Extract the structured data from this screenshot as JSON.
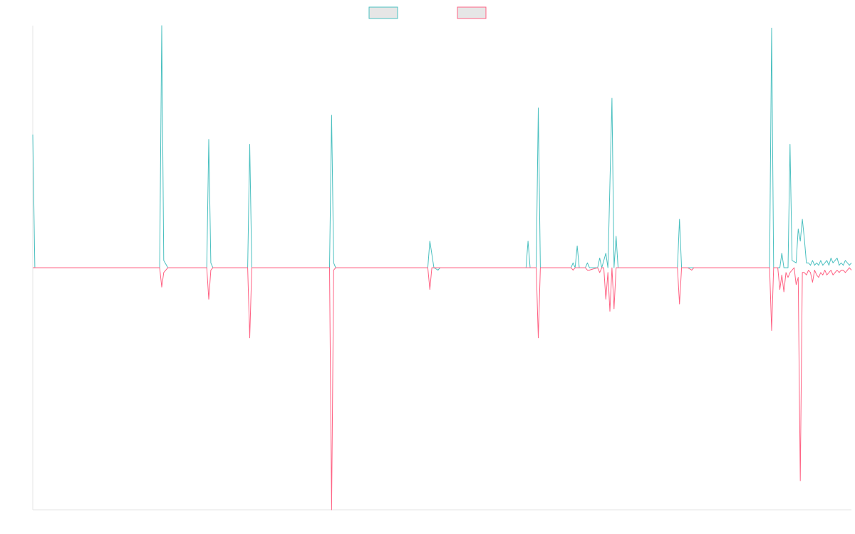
{
  "chart_data": {
    "type": "line",
    "title": "",
    "xlabel": "",
    "ylabel": "",
    "x_range": [
      0,
      400
    ],
    "ylim": [
      -100,
      100
    ],
    "grid": false,
    "legend_position": "top-center",
    "series": [
      {
        "name": "",
        "color": "#4bc0c0",
        "fill": "#e6e6e6",
        "points": [
          [
            0,
            55
          ],
          [
            1,
            0
          ],
          [
            62,
            0
          ],
          [
            63,
            100
          ],
          [
            64,
            3
          ],
          [
            66,
            0
          ],
          [
            85,
            0
          ],
          [
            86,
            53
          ],
          [
            87,
            2
          ],
          [
            88,
            0
          ],
          [
            105,
            0
          ],
          [
            106,
            51
          ],
          [
            107,
            0
          ],
          [
            145,
            0
          ],
          [
            146,
            63
          ],
          [
            147,
            2
          ],
          [
            148,
            0
          ],
          [
            193,
            0
          ],
          [
            194,
            11
          ],
          [
            196,
            0
          ],
          [
            198,
            -1
          ],
          [
            199,
            0
          ],
          [
            241,
            0
          ],
          [
            242,
            11
          ],
          [
            243,
            0
          ],
          [
            246,
            0
          ],
          [
            247,
            66
          ],
          [
            248,
            0
          ],
          [
            252,
            0
          ],
          [
            263,
            0
          ],
          [
            264,
            2
          ],
          [
            265,
            0
          ],
          [
            266,
            9
          ],
          [
            267,
            0
          ],
          [
            270,
            0
          ],
          [
            271,
            2
          ],
          [
            272,
            0
          ],
          [
            276,
            0
          ],
          [
            277,
            4
          ],
          [
            278,
            0
          ],
          [
            280,
            6
          ],
          [
            281,
            0
          ],
          [
            283,
            70
          ],
          [
            284,
            0
          ],
          [
            285,
            13
          ],
          [
            286,
            0
          ],
          [
            290,
            0
          ],
          [
            315,
            0
          ],
          [
            316,
            20
          ],
          [
            317,
            0
          ],
          [
            320,
            0
          ],
          [
            322,
            0
          ],
          [
            330,
            0
          ],
          [
            360,
            0
          ],
          [
            361,
            99
          ],
          [
            362,
            0
          ],
          [
            365,
            0
          ],
          [
            366,
            6
          ],
          [
            367,
            0
          ],
          [
            369,
            0
          ],
          [
            370,
            51
          ],
          [
            371,
            3
          ],
          [
            373,
            2
          ],
          [
            374,
            16
          ],
          [
            375,
            11
          ],
          [
            376,
            20
          ],
          [
            377,
            12
          ],
          [
            378,
            2
          ],
          [
            379,
            2
          ],
          [
            380,
            1
          ],
          [
            381,
            3
          ],
          [
            382,
            1
          ],
          [
            383,
            2
          ],
          [
            384,
            1
          ],
          [
            385,
            3
          ],
          [
            386,
            1
          ],
          [
            387,
            2
          ],
          [
            388,
            3
          ],
          [
            389,
            1
          ],
          [
            390,
            4
          ],
          [
            391,
            2
          ],
          [
            392,
            3
          ],
          [
            393,
            4
          ],
          [
            394,
            1
          ],
          [
            395,
            2
          ],
          [
            396,
            1
          ],
          [
            397,
            3
          ],
          [
            398,
            2
          ],
          [
            399,
            1
          ],
          [
            400,
            2
          ]
        ]
      },
      {
        "name": "",
        "color": "#ff6384",
        "fill": "#e6e6e6",
        "points": [
          [
            0,
            0
          ],
          [
            62,
            0
          ],
          [
            63,
            -8
          ],
          [
            64,
            -2
          ],
          [
            66,
            0
          ],
          [
            85,
            0
          ],
          [
            86,
            -13
          ],
          [
            87,
            -1
          ],
          [
            88,
            0
          ],
          [
            105,
            0
          ],
          [
            106,
            -29
          ],
          [
            107,
            0
          ],
          [
            145,
            0
          ],
          [
            146,
            -100
          ],
          [
            147,
            -1
          ],
          [
            148,
            0
          ],
          [
            193,
            0
          ],
          [
            194,
            -9
          ],
          [
            195,
            0
          ],
          [
            246,
            0
          ],
          [
            247,
            -29
          ],
          [
            248,
            0
          ],
          [
            252,
            0
          ],
          [
            263,
            0
          ],
          [
            264,
            -1
          ],
          [
            265,
            0
          ],
          [
            270,
            0
          ],
          [
            271,
            -1
          ],
          [
            272,
            -1
          ],
          [
            276,
            0
          ],
          [
            277,
            -2
          ],
          [
            278,
            0
          ],
          [
            279,
            0
          ],
          [
            280,
            -13
          ],
          [
            281,
            -2
          ],
          [
            282,
            -18
          ],
          [
            283,
            0
          ],
          [
            284,
            -17
          ],
          [
            285,
            0
          ],
          [
            290,
            0
          ],
          [
            315,
            0
          ],
          [
            316,
            -15
          ],
          [
            317,
            0
          ],
          [
            320,
            0
          ],
          [
            322,
            -1
          ],
          [
            323,
            0
          ],
          [
            330,
            0
          ],
          [
            360,
            0
          ],
          [
            361,
            -26
          ],
          [
            362,
            0
          ],
          [
            364,
            0
          ],
          [
            365,
            -9
          ],
          [
            366,
            -3
          ],
          [
            367,
            -10
          ],
          [
            368,
            -2
          ],
          [
            369,
            -4
          ],
          [
            370,
            -2
          ],
          [
            371,
            -1
          ],
          [
            372,
            0
          ],
          [
            373,
            -7
          ],
          [
            374,
            -4
          ],
          [
            375,
            -88
          ],
          [
            376,
            -2
          ],
          [
            377,
            -2
          ],
          [
            378,
            -3
          ],
          [
            379,
            -1
          ],
          [
            380,
            -2
          ],
          [
            381,
            -6
          ],
          [
            382,
            -1
          ],
          [
            383,
            -3
          ],
          [
            384,
            -4
          ],
          [
            385,
            -2
          ],
          [
            386,
            -3
          ],
          [
            387,
            -1
          ],
          [
            388,
            -3
          ],
          [
            389,
            -2
          ],
          [
            390,
            -1
          ],
          [
            391,
            -3
          ],
          [
            392,
            -2
          ],
          [
            393,
            -1
          ],
          [
            394,
            -2
          ],
          [
            395,
            -1
          ],
          [
            396,
            -1
          ],
          [
            397,
            -2
          ],
          [
            398,
            -1
          ],
          [
            399,
            0
          ],
          [
            400,
            -1
          ]
        ]
      }
    ]
  }
}
